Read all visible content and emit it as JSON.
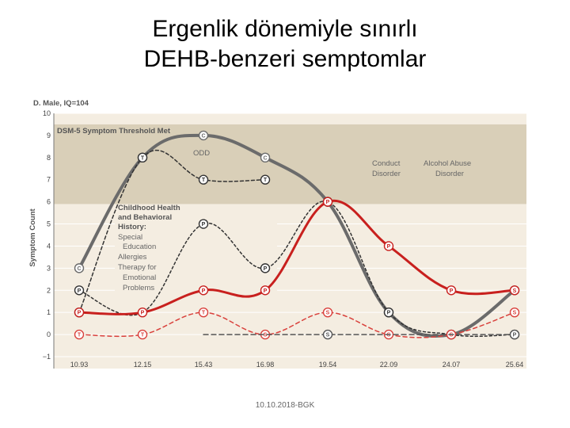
{
  "slide": {
    "title_line1": "Ergenlik dönemiyle sınırlı",
    "title_line2": "DEHB-benzeri semptomlar",
    "footer": "10.10.2018-BGK"
  },
  "chart_data": {
    "type": "line",
    "subject_label": "D. Male, IQ=104",
    "ylabel": "Symptom Count",
    "ylim": [
      -1,
      10
    ],
    "yticks": [
      -1,
      0,
      1,
      2,
      3,
      4,
      5,
      6,
      7,
      8,
      9,
      10
    ],
    "x": [
      "10.93",
      "12.15",
      "15.43",
      "16.98",
      "19.54",
      "22.09",
      "24.07",
      "25.64"
    ],
    "grid": "horizontal",
    "threshold_band": {
      "label": "DSM-5 Symptom Threshold Met",
      "from": 5.9,
      "to": 9.5
    },
    "history_box": {
      "line1": "Childhood Health",
      "line2": "and Behavioral",
      "line3": "History:",
      "line4": "Special",
      "line5": "Education",
      "line6": "Allergies",
      "line7": "Therapy for",
      "line8": "Emotional",
      "line9": "Problems"
    },
    "annotations": {
      "odd": "ODD",
      "conduct1": "Conduct",
      "conduct2": "Disorder",
      "alcohol1": "Alcohol Abuse",
      "alcohol2": "Disorder"
    },
    "series": [
      {
        "label": "C",
        "color": "#6b6b6b",
        "dash": "none",
        "width": 4,
        "values": [
          3,
          8,
          9,
          8,
          6,
          1,
          0,
          2
        ],
        "markers": [
          "C",
          "T",
          "C",
          "C",
          "P",
          "P",
          "S",
          "S"
        ]
      },
      {
        "label": "T",
        "color": "#333333",
        "dash": "4,3",
        "width": 1.5,
        "values": [
          1,
          8,
          7,
          7,
          null,
          null,
          null,
          null
        ],
        "markers": [
          "T",
          "T",
          "T",
          "T",
          "",
          "",
          "",
          ""
        ]
      },
      {
        "label": "P",
        "color": "#333333",
        "dash": "3,3",
        "width": 1.5,
        "values": [
          2,
          1,
          5,
          3,
          6,
          1,
          0,
          0
        ],
        "markers": [
          "P",
          "",
          "P",
          "P",
          "P",
          "P",
          "S",
          "P"
        ]
      },
      {
        "label": "P",
        "color": "#c8201e",
        "dash": "none",
        "width": 3,
        "values": [
          1,
          1,
          2,
          2,
          6,
          4,
          2,
          2
        ],
        "markers": [
          "P",
          "P",
          "P",
          "P",
          "P",
          "P",
          "P",
          "S"
        ]
      },
      {
        "label": "S",
        "color": "#d9413c",
        "dash": "5,4",
        "width": 1.5,
        "values": [
          0,
          0,
          1,
          0,
          1,
          0,
          0,
          1
        ],
        "markers": [
          "T",
          "T",
          "T",
          "S",
          "S",
          "S",
          "S",
          "S"
        ]
      },
      {
        "label": "S",
        "color": "#555555",
        "dash": "6,4",
        "width": 1.5,
        "values": [
          null,
          null,
          0,
          0,
          0,
          0,
          0,
          0
        ],
        "markers": [
          "",
          "",
          "",
          "",
          "S",
          "",
          "",
          "P"
        ]
      }
    ]
  }
}
